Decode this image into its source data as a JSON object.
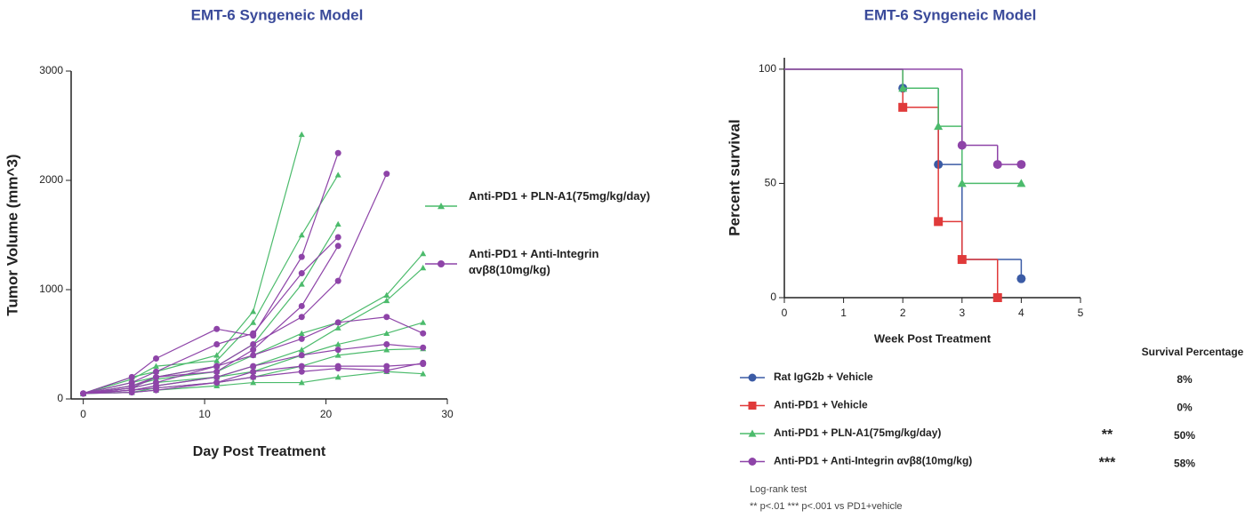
{
  "chart_data": [
    {
      "type": "line",
      "title": "EMT-6 Syngeneic Model",
      "xlabel": "Day Post Treatment",
      "ylabel": "Tumor Volume (mm^3)",
      "x": [
        0,
        4,
        6,
        11,
        14,
        18,
        21,
        25,
        28
      ],
      "xlim": [
        -1,
        30
      ],
      "xticks": [
        0,
        10,
        20,
        30
      ],
      "ylim": [
        0,
        3000
      ],
      "yticks": [
        0,
        1000,
        2000,
        3000
      ],
      "series": [
        {
          "name": "Anti-PD1 + PLN-A1(75mg/kg/day)",
          "color": "#4cbb6c",
          "marker": "triangle",
          "values": [
            [
              50,
              200,
              250,
              400,
              800,
              2420,
              null,
              null,
              null
            ],
            [
              50,
              180,
              300,
              350,
              700,
              1500,
              2050,
              null,
              null
            ],
            [
              50,
              150,
              200,
              300,
              500,
              1050,
              1600,
              null,
              null
            ],
            [
              50,
              120,
              180,
              250,
              400,
              600,
              700,
              950,
              1330
            ],
            [
              50,
              100,
              150,
              200,
              300,
              450,
              650,
              900,
              1200
            ],
            [
              50,
              80,
              120,
              200,
              250,
              400,
              500,
              600,
              700
            ],
            [
              50,
              60,
              100,
              150,
              200,
              300,
              400,
              450,
              460
            ],
            [
              50,
              60,
              80,
              120,
              150,
              150,
              200,
              250,
              230
            ]
          ]
        },
        {
          "name": "Anti-PD1 + Anti-Integrin αvβ8(10mg/kg)",
          "color": "#8e44a8",
          "marker": "circle",
          "values": [
            [
              50,
              200,
              370,
              640,
              580,
              1300,
              2250,
              null,
              null
            ],
            [
              50,
              150,
              250,
              500,
              600,
              1150,
              1480,
              null,
              null
            ],
            [
              50,
              120,
              200,
              300,
              500,
              750,
              1080,
              2060,
              null
            ],
            [
              50,
              100,
              200,
              250,
              450,
              850,
              1400,
              null,
              null
            ],
            [
              50,
              100,
              150,
              300,
              400,
              550,
              700,
              750,
              600
            ],
            [
              50,
              80,
              120,
              200,
              300,
              400,
              450,
              500,
              470
            ],
            [
              50,
              80,
              100,
              150,
              250,
              300,
              300,
              300,
              320
            ],
            [
              50,
              60,
              80,
              150,
              200,
              250,
              280,
              260,
              330
            ]
          ]
        }
      ]
    },
    {
      "type": "survival",
      "title": "EMT-6 Syngeneic Model",
      "xlabel": "Week Post Treatment",
      "ylabel": "Percent survival",
      "xlim": [
        0,
        5
      ],
      "xticks": [
        0,
        1,
        2,
        3,
        4,
        5
      ],
      "ylim": [
        0,
        105
      ],
      "yticks": [
        0,
        50,
        100
      ],
      "column_header": "Survival Percentage",
      "notes": [
        "Log-rank test",
        "** p<.01  *** p<.001 vs PD1+vehicle"
      ],
      "series": [
        {
          "name": "Rat IgG2b + Vehicle",
          "color": "#3b5ba5",
          "marker": "circle",
          "x": [
            0,
            2,
            2.6,
            3,
            4
          ],
          "y": [
            100,
            91.7,
            58.3,
            16.7,
            8.3
          ],
          "survival_percentage": "8%"
        },
        {
          "name": "Anti-PD1 + Vehicle",
          "color": "#e03a3a",
          "marker": "square",
          "x": [
            0,
            2,
            2.6,
            3,
            3.6
          ],
          "y": [
            100,
            83.3,
            33.3,
            16.7,
            0
          ],
          "survival_percentage": "0%"
        },
        {
          "name": "Anti-PD1 + PLN-A1(75mg/kg/day)",
          "color": "#4cbb6c",
          "marker": "triangle",
          "x": [
            0,
            2,
            2.6,
            3,
            4
          ],
          "y": [
            100,
            91.7,
            75,
            50,
            50
          ],
          "significance": "**",
          "survival_percentage": "50%"
        },
        {
          "name": "Anti-PD1 + Anti-Integrin αvβ8(10mg/kg)",
          "color": "#8e44a8",
          "marker": "circle",
          "x": [
            0,
            3,
            3.6,
            4
          ],
          "y": [
            100,
            66.7,
            58.3,
            58.3
          ],
          "significance": "***",
          "survival_percentage": "58%"
        }
      ]
    }
  ]
}
